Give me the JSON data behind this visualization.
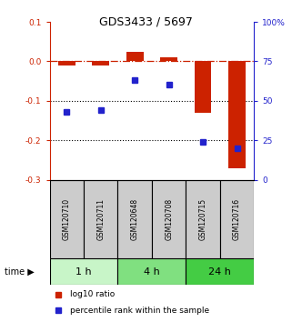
{
  "title": "GDS3433 / 5697",
  "samples": [
    "GSM120710",
    "GSM120711",
    "GSM120648",
    "GSM120708",
    "GSM120715",
    "GSM120716"
  ],
  "log10_ratio": [
    -0.01,
    -0.01,
    0.025,
    0.01,
    -0.13,
    -0.27
  ],
  "percentile_rank": [
    43,
    44,
    63,
    60,
    24,
    20
  ],
  "time_groups": [
    {
      "label": "1 h",
      "start": 0,
      "end": 2,
      "color": "#c8f5c8"
    },
    {
      "label": "4 h",
      "start": 2,
      "end": 4,
      "color": "#80e080"
    },
    {
      "label": "24 h",
      "start": 4,
      "end": 6,
      "color": "#44cc44"
    }
  ],
  "red_color": "#cc2200",
  "blue_color": "#2222cc",
  "ylim_left": [
    -0.3,
    0.1
  ],
  "ylim_right": [
    0,
    100
  ],
  "right_ticks": [
    0,
    25,
    50,
    75,
    100
  ],
  "right_tick_labels": [
    "0",
    "25",
    "50",
    "75",
    "100%"
  ],
  "left_ticks": [
    -0.3,
    -0.2,
    -0.1,
    0.0,
    0.1
  ],
  "hline_y": 0.0,
  "dotted_lines": [
    -0.1,
    -0.2
  ],
  "bar_width": 0.5,
  "marker_size": 5,
  "label_fontsize": 7,
  "tick_fontsize": 6.5,
  "sample_fontsize": 5.5,
  "time_fontsize": 8,
  "legend_fontsize": 6.5,
  "title_fontsize": 9,
  "sample_box_color": "#cccccc"
}
